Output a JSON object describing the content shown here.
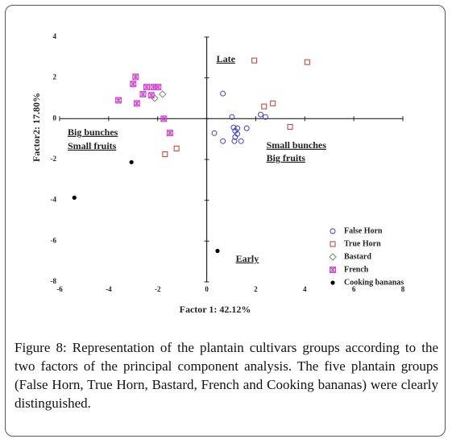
{
  "chart_data": {
    "type": "scatter",
    "xlabel": "Factor 1: 42.12%",
    "ylabel": "Factor2: 17.80%",
    "xlim": [
      -6,
      8
    ],
    "ylim": [
      -8,
      4
    ],
    "xticks": [
      -6,
      -4,
      -2,
      0,
      2,
      4,
      6,
      8
    ],
    "yticks": [
      -8,
      -6,
      -4,
      -2,
      0,
      2,
      4
    ],
    "annotations": [
      "Late",
      "Big bunches",
      "Small fruits",
      "Small bunches",
      "Big fruits",
      "Early"
    ],
    "legend": "lower right",
    "series": [
      {
        "name": "False Horn",
        "color": "#3f3fbf",
        "marker": "circle",
        "x": [
          0.66,
          0.31,
          0.66,
          1.03,
          1.1,
          1.16,
          1.25,
          1.16,
          1.13,
          1.25,
          1.4,
          1.63,
          2.2,
          2.4
        ],
        "values": [
          1.23,
          -0.71,
          -1.1,
          0.08,
          -0.43,
          -0.6,
          -0.47,
          -0.9,
          -1.1,
          -0.75,
          -1.1,
          -0.47,
          0.2,
          0.08
        ]
      },
      {
        "name": "True Horn",
        "color": "#c0392b",
        "marker": "square",
        "x": [
          1.94,
          4.1,
          2.34,
          2.7,
          3.4,
          -1.7,
          -1.23
        ],
        "values": [
          2.85,
          2.77,
          0.6,
          0.75,
          -0.4,
          -1.74,
          -1.46
        ]
      },
      {
        "name": "Bastard",
        "color": "#6b8e6b",
        "marker": "diamond",
        "x": [
          -2.12,
          -1.8
        ],
        "values": [
          1.0,
          1.2
        ]
      },
      {
        "name": "French",
        "color": "#cc44cc",
        "marker": "star",
        "x": [
          -3.6,
          -2.9,
          -3.0,
          -2.45,
          -2.17,
          -1.98,
          -2.6,
          -2.26,
          -2.85,
          -1.75,
          -1.5
        ],
        "values": [
          0.9,
          2.05,
          1.7,
          1.55,
          1.55,
          1.55,
          1.2,
          1.15,
          0.75,
          0,
          -0.7
        ]
      },
      {
        "name": "Cooking bananas",
        "color": "#000000",
        "marker": "dot",
        "x": [
          -3.07,
          -5.4,
          0.44
        ],
        "values": [
          -2.13,
          -3.87,
          -6.48
        ]
      }
    ]
  },
  "caption": "Figure 8: Representation of the plantain cultivars groups according to the two factors of the principal component analysis. The five plantain groups (False Horn, True Horn, Bastard, French and Cooking bananas) were clearly distinguished."
}
